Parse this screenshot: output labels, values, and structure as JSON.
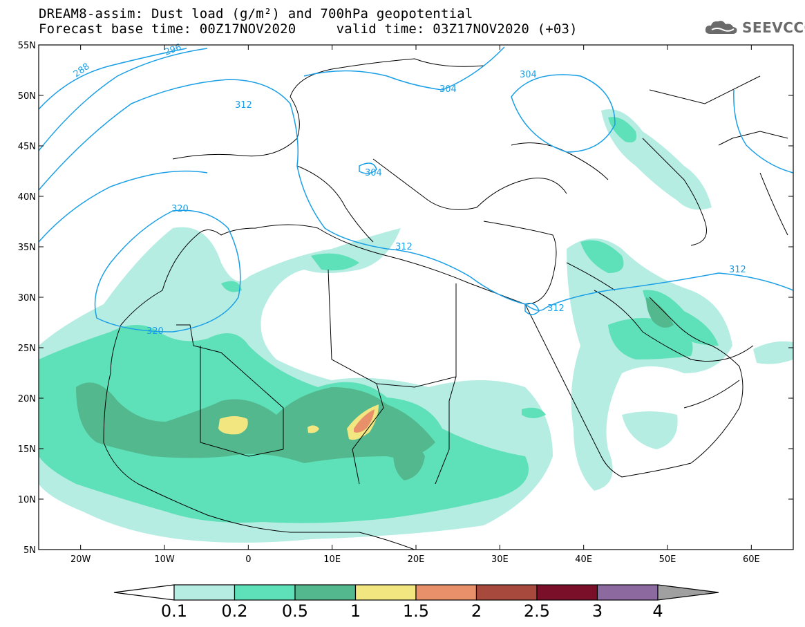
{
  "title": {
    "line1": "DREAM8-assim: Dust load (g/m²) and 700hPa geopotential",
    "line2": "Forecast base time: 00Z17NOV2020     valid time: 03Z17NOV2020 (+03)"
  },
  "logo": {
    "text": "SEEVCCC",
    "icon": "cloud-icon"
  },
  "map": {
    "lat_labels": [
      "55N",
      "50N",
      "45N",
      "40N",
      "35N",
      "30N",
      "25N",
      "20N",
      "15N",
      "10N",
      "5N"
    ],
    "lon_labels": [
      "20W",
      "10W",
      "0",
      "10E",
      "20E",
      "30E",
      "40E",
      "50E",
      "60E"
    ],
    "lat_range": [
      5,
      55
    ],
    "lon_range": [
      -25,
      65
    ],
    "contour_color": "#1a9fe6",
    "contour_labels": [
      "288",
      "296",
      "304",
      "312",
      "320"
    ]
  },
  "colorbar": {
    "labels": [
      "0.1",
      "0.2",
      "0.5",
      "1",
      "1.5",
      "2",
      "2.5",
      "3",
      "4"
    ],
    "colors": [
      "#b5ede3",
      "#5ee0b8",
      "#54b88e",
      "#f2e680",
      "#e8906a",
      "#a8493e",
      "#7a0f2a",
      "#8c6aa0",
      "#a0a0a0"
    ]
  }
}
